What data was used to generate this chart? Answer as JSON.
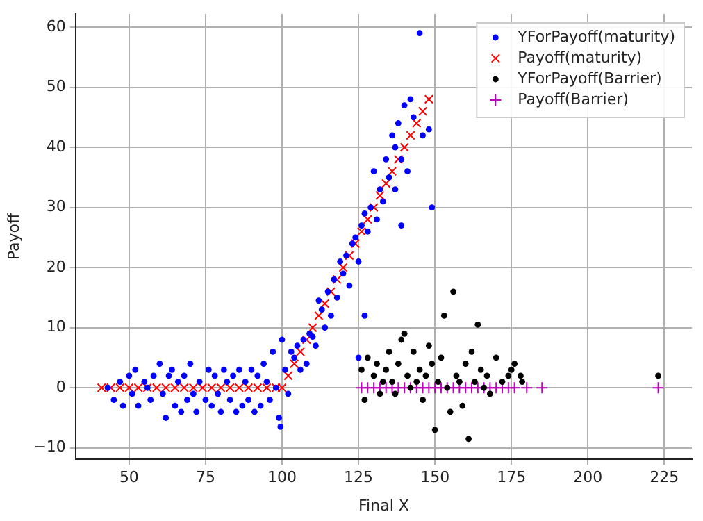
{
  "chart_data": {
    "type": "scatter",
    "xlabel": "Final X",
    "ylabel": "Payoff",
    "xlim": [
      32.5,
      234
    ],
    "ylim": [
      -11.9,
      62.2
    ],
    "xticks": [
      50,
      75,
      100,
      125,
      150,
      175,
      200,
      225
    ],
    "yticks": [
      -10,
      0,
      10,
      20,
      30,
      40,
      50,
      60
    ],
    "grid": true,
    "legend": "top right",
    "series": [
      {
        "name": "YForPayoff(maturity)",
        "color": "#0000ff",
        "marker": "circle",
        "x": [
          43,
          45,
          47,
          48,
          50,
          51,
          52,
          53,
          55,
          56,
          57,
          58,
          60,
          61,
          62,
          63,
          64,
          65,
          66,
          67,
          68,
          69,
          70,
          71,
          72,
          73,
          75,
          76,
          77,
          78,
          79,
          80,
          81,
          82,
          83,
          84,
          85,
          86,
          87,
          88,
          89,
          90,
          91,
          92,
          93,
          94,
          95,
          96,
          97,
          98,
          99,
          99.5,
          100,
          101,
          102,
          103,
          104,
          105,
          106,
          107,
          108,
          109,
          110,
          111,
          112,
          113,
          114,
          115,
          116,
          117,
          118,
          119,
          120,
          121,
          122,
          123,
          124,
          125,
          126,
          127,
          128,
          129,
          130,
          131,
          132,
          133,
          134,
          135,
          136,
          137,
          138,
          139,
          140,
          141,
          142,
          143,
          145,
          146,
          148,
          149,
          127,
          139,
          125,
          137
        ],
        "values": [
          0,
          -2,
          1,
          -3,
          2,
          -1,
          3,
          -3,
          1,
          0,
          -2,
          2,
          4,
          -1,
          -5,
          2,
          3,
          -3,
          1,
          -4,
          2,
          -2,
          4,
          -1,
          -4,
          1,
          -2,
          3,
          -3,
          2,
          -1,
          -4,
          3,
          1,
          -2,
          2,
          -4,
          3,
          -3,
          1,
          -2,
          3,
          -4,
          2,
          -3,
          4,
          1,
          -2,
          6,
          0,
          -5,
          -6.5,
          8,
          3,
          -1,
          6,
          5,
          7,
          3,
          8,
          4,
          9,
          8.5,
          7,
          14.5,
          13,
          10,
          16,
          12,
          18,
          15,
          21,
          19,
          22,
          17,
          24,
          25,
          21,
          27,
          29,
          26,
          30,
          36,
          28,
          33,
          31,
          38,
          35,
          42,
          40,
          44,
          38,
          47,
          36,
          48,
          45,
          59,
          42,
          43,
          30,
          12,
          27,
          5,
          33
        ]
      },
      {
        "name": "Payoff(maturity)",
        "color": "#ff0000",
        "marker": "cross",
        "x": [
          41,
          44,
          47,
          50,
          53,
          56,
          59,
          62,
          65,
          68,
          71,
          74,
          77,
          80,
          83,
          86,
          89,
          92,
          95,
          98,
          100,
          102,
          104,
          106,
          108,
          110,
          112,
          114,
          116,
          118,
          120,
          122,
          124,
          126,
          128,
          130,
          132,
          134,
          136,
          138,
          140,
          142,
          144,
          146,
          148
        ],
        "values": [
          0,
          0,
          0,
          0,
          0,
          0,
          0,
          0,
          0,
          0,
          0,
          0,
          0,
          0,
          0,
          0,
          0,
          0,
          0,
          0,
          0,
          2,
          4,
          6,
          8,
          10,
          12,
          14,
          16,
          18,
          20,
          22,
          24,
          26,
          28,
          30,
          32,
          34,
          36,
          38,
          40,
          42,
          44,
          46,
          48
        ]
      },
      {
        "name": "YForPayoff(Barrier)",
        "color": "#000000",
        "marker": "circle",
        "x": [
          126,
          127,
          128,
          130,
          131,
          132,
          133,
          134,
          135,
          136,
          137,
          138,
          139,
          140,
          141,
          142,
          143,
          144,
          145,
          146,
          147,
          148,
          149,
          150,
          151,
          152,
          153,
          154,
          155,
          156,
          157,
          158,
          159,
          160,
          161,
          162,
          163,
          164,
          165,
          166,
          167,
          168,
          170,
          172,
          174,
          175,
          176,
          178,
          178.5,
          223
        ],
        "values": [
          3,
          -2,
          5,
          2,
          4,
          -1,
          1,
          3,
          6,
          1,
          -1,
          4,
          8,
          9,
          2,
          0,
          6,
          1,
          3,
          -2,
          2,
          7,
          4,
          -7,
          1,
          5,
          12,
          0,
          -4,
          16,
          2,
          1,
          -3,
          4,
          -8.5,
          6,
          1,
          10.5,
          3,
          0,
          2,
          -1,
          5,
          1,
          2,
          3,
          4,
          2,
          1,
          2
        ]
      },
      {
        "name": "Payoff(Barrier)",
        "color": "#bf00bf",
        "marker": "plus",
        "x": [
          126,
          128,
          130,
          132,
          134,
          136,
          138,
          140,
          142,
          144,
          146,
          148,
          150,
          152,
          154,
          156,
          158,
          160,
          162,
          164,
          166,
          168,
          170,
          172,
          174,
          176,
          180,
          185,
          223
        ],
        "values": [
          0,
          0,
          0,
          0,
          0,
          0,
          0,
          0,
          0,
          0,
          0,
          0,
          0,
          0,
          0,
          0,
          0,
          0,
          0,
          0,
          0,
          0,
          0,
          0,
          0,
          0,
          0,
          0,
          0
        ]
      }
    ]
  }
}
